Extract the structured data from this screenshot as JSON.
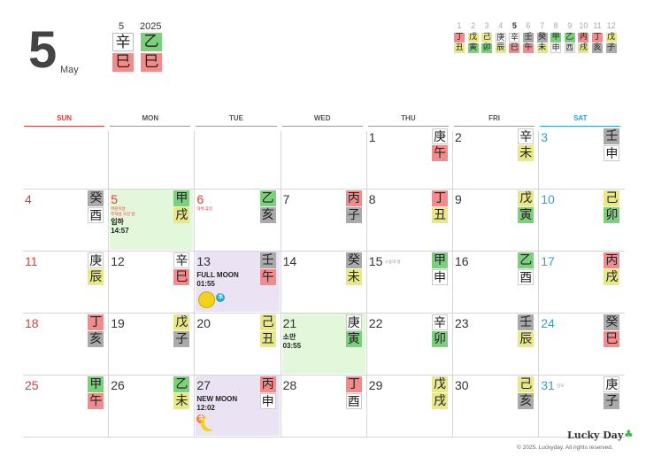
{
  "header": {
    "month_num": "5",
    "month_name": "May",
    "month_label": "5",
    "year": "2025",
    "month_ganzhi": [
      {
        "top": "辛",
        "bottom": "巳",
        "top_color": "#ffffff",
        "bottom_color": "#f08c8c"
      },
      {
        "top": "乙",
        "bottom": "巳",
        "top_color": "#7ccf7c",
        "bottom_color": "#f08c8c"
      }
    ]
  },
  "mini_year": [
    {
      "num": "1",
      "top": "丁",
      "bottom": "丑",
      "tc": "#f08c8c",
      "bc": "#e8e88a",
      "current": false
    },
    {
      "num": "2",
      "top": "戊",
      "bottom": "寅",
      "tc": "#e8e88a",
      "bc": "#7ccf7c",
      "current": false
    },
    {
      "num": "3",
      "top": "己",
      "bottom": "卯",
      "tc": "#e8e88a",
      "bc": "#7ccf7c",
      "current": false
    },
    {
      "num": "4",
      "top": "庚",
      "bottom": "辰",
      "tc": "#ffffff",
      "bc": "#e8e88a",
      "current": false
    },
    {
      "num": "5",
      "top": "辛",
      "bottom": "巳",
      "tc": "#ffffff",
      "bc": "#f08c8c",
      "current": true
    },
    {
      "num": "6",
      "top": "壬",
      "bottom": "午",
      "tc": "#aaaaaa",
      "bc": "#f08c8c",
      "current": false
    },
    {
      "num": "7",
      "top": "癸",
      "bottom": "未",
      "tc": "#aaaaaa",
      "bc": "#e8e88a",
      "current": false
    },
    {
      "num": "8",
      "top": "甲",
      "bottom": "申",
      "tc": "#7ccf7c",
      "bc": "#ffffff",
      "current": false
    },
    {
      "num": "9",
      "top": "乙",
      "bottom": "酉",
      "tc": "#7ccf7c",
      "bc": "#ffffff",
      "current": false
    },
    {
      "num": "10",
      "top": "丙",
      "bottom": "戌",
      "tc": "#f08c8c",
      "bc": "#e8e88a",
      "current": false
    },
    {
      "num": "11",
      "top": "丁",
      "bottom": "亥",
      "tc": "#f08c8c",
      "bc": "#aaaaaa",
      "current": false
    },
    {
      "num": "12",
      "top": "戊",
      "bottom": "子",
      "tc": "#e8e88a",
      "bc": "#aaaaaa",
      "current": false
    }
  ],
  "weekdays": [
    "SUN",
    "MON",
    "TUE",
    "WED",
    "THU",
    "FRI",
    "SAT"
  ],
  "days": [
    {
      "d": "1",
      "col": 4,
      "row": 0,
      "top": "庚",
      "bottom": "午",
      "tc": "#ffffff",
      "bc": "#f08c8c"
    },
    {
      "d": "2",
      "col": 5,
      "row": 0,
      "top": "辛",
      "bottom": "未",
      "tc": "#ffffff",
      "bc": "#e8e88a"
    },
    {
      "d": "3",
      "col": 6,
      "row": 0,
      "top": "壬",
      "bottom": "申",
      "tc": "#aaaaaa",
      "bc": "#ffffff"
    },
    {
      "d": "4",
      "col": 0,
      "row": 1,
      "top": "癸",
      "bottom": "酉",
      "tc": "#aaaaaa",
      "bc": "#ffffff"
    },
    {
      "d": "5",
      "col": 1,
      "row": 1,
      "top": "甲",
      "bottom": "戌",
      "tc": "#7ccf7c",
      "bc": "#e8e88a",
      "red": true,
      "bg": "#e3f7db",
      "events": [
        "어린이날",
        "부처님 오신 날"
      ],
      "term": [
        "입하",
        "14:57"
      ]
    },
    {
      "d": "6",
      "col": 2,
      "row": 1,
      "top": "乙",
      "bottom": "亥",
      "tc": "#7ccf7c",
      "bc": "#aaaaaa",
      "red": true,
      "events": [
        "대체 휴일"
      ]
    },
    {
      "d": "7",
      "col": 3,
      "row": 1,
      "top": "丙",
      "bottom": "子",
      "tc": "#f08c8c",
      "bc": "#aaaaaa"
    },
    {
      "d": "8",
      "col": 4,
      "row": 1,
      "top": "丁",
      "bottom": "丑",
      "tc": "#f08c8c",
      "bc": "#e8e88a"
    },
    {
      "d": "9",
      "col": 5,
      "row": 1,
      "top": "戊",
      "bottom": "寅",
      "tc": "#e8e88a",
      "bc": "#7ccf7c"
    },
    {
      "d": "10",
      "col": 6,
      "row": 1,
      "top": "己",
      "bottom": "卯",
      "tc": "#e8e88a",
      "bc": "#7ccf7c"
    },
    {
      "d": "11",
      "col": 0,
      "row": 2,
      "top": "庚",
      "bottom": "辰",
      "tc": "#ffffff",
      "bc": "#e8e88a"
    },
    {
      "d": "12",
      "col": 1,
      "row": 2,
      "top": "辛",
      "bottom": "巳",
      "tc": "#ffffff",
      "bc": "#f08c8c"
    },
    {
      "d": "13",
      "col": 2,
      "row": 2,
      "top": "壬",
      "bottom": "午",
      "tc": "#aaaaaa",
      "bc": "#f08c8c",
      "bg": "#ebe3f3",
      "term": [
        "FULL MOON",
        "01:55"
      ],
      "moon": "full"
    },
    {
      "d": "14",
      "col": 3,
      "row": 2,
      "top": "癸",
      "bottom": "未",
      "tc": "#aaaaaa",
      "bc": "#e8e88a"
    },
    {
      "d": "15",
      "col": 4,
      "row": 2,
      "top": "甲",
      "bottom": "申",
      "tc": "#7ccf7c",
      "bc": "#ffffff",
      "events_gray": [
        "스승의 날"
      ]
    },
    {
      "d": "16",
      "col": 5,
      "row": 2,
      "top": "乙",
      "bottom": "酉",
      "tc": "#7ccf7c",
      "bc": "#ffffff"
    },
    {
      "d": "17",
      "col": 6,
      "row": 2,
      "top": "丙",
      "bottom": "戌",
      "tc": "#f08c8c",
      "bc": "#e8e88a"
    },
    {
      "d": "18",
      "col": 0,
      "row": 3,
      "top": "丁",
      "bottom": "亥",
      "tc": "#f08c8c",
      "bc": "#aaaaaa"
    },
    {
      "d": "19",
      "col": 1,
      "row": 3,
      "top": "戊",
      "bottom": "子",
      "tc": "#e8e88a",
      "bc": "#aaaaaa"
    },
    {
      "d": "20",
      "col": 2,
      "row": 3,
      "top": "己",
      "bottom": "丑",
      "tc": "#e8e88a",
      "bc": "#e8e88a"
    },
    {
      "d": "21",
      "col": 3,
      "row": 3,
      "top": "庚",
      "bottom": "寅",
      "tc": "#ffffff",
      "bc": "#7ccf7c",
      "bg": "#e3f7db",
      "term": [
        "소만",
        "03:55"
      ]
    },
    {
      "d": "22",
      "col": 4,
      "row": 3,
      "top": "辛",
      "bottom": "卯",
      "tc": "#ffffff",
      "bc": "#7ccf7c"
    },
    {
      "d": "23",
      "col": 5,
      "row": 3,
      "top": "壬",
      "bottom": "辰",
      "tc": "#aaaaaa",
      "bc": "#e8e88a"
    },
    {
      "d": "24",
      "col": 6,
      "row": 3,
      "top": "癸",
      "bottom": "巳",
      "tc": "#aaaaaa",
      "bc": "#f08c8c"
    },
    {
      "d": "25",
      "col": 0,
      "row": 4,
      "top": "甲",
      "bottom": "午",
      "tc": "#7ccf7c",
      "bc": "#f08c8c"
    },
    {
      "d": "26",
      "col": 1,
      "row": 4,
      "top": "乙",
      "bottom": "未",
      "tc": "#7ccf7c",
      "bc": "#e8e88a"
    },
    {
      "d": "27",
      "col": 2,
      "row": 4,
      "top": "丙",
      "bottom": "申",
      "tc": "#f08c8c",
      "bc": "#ffffff",
      "bg": "#ebe3f3",
      "term": [
        "NEW MOON",
        "12:02"
      ],
      "moon": "new"
    },
    {
      "d": "28",
      "col": 3,
      "row": 4,
      "top": "丁",
      "bottom": "酉",
      "tc": "#f08c8c",
      "bc": "#ffffff"
    },
    {
      "d": "29",
      "col": 4,
      "row": 4,
      "top": "戊",
      "bottom": "戌",
      "tc": "#e8e88a",
      "bc": "#e8e88a"
    },
    {
      "d": "30",
      "col": 5,
      "row": 4,
      "top": "己",
      "bottom": "亥",
      "tc": "#e8e88a",
      "bc": "#aaaaaa"
    },
    {
      "d": "31",
      "col": 6,
      "row": 4,
      "top": "庚",
      "bottom": "子",
      "tc": "#ffffff",
      "bc": "#aaaaaa",
      "events_gray": [
        "단오"
      ]
    }
  ],
  "footer": {
    "brand": "Lucky Day",
    "copyright": "© 2025. Luckyday. All rights reserved."
  }
}
